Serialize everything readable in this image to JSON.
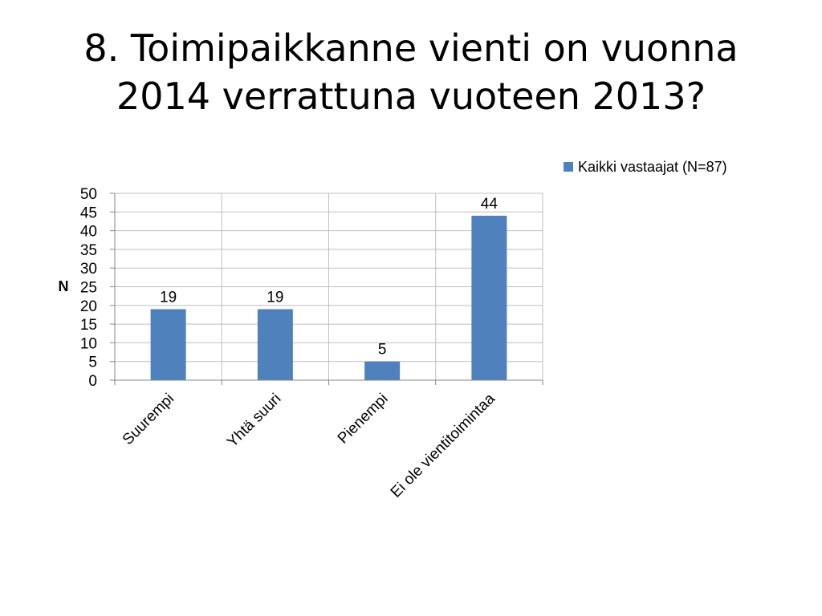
{
  "slide": {
    "title_line1": "8. Toimipaikkanne vienti on vuonna",
    "title_line2": "2014 verrattuna vuoteen 2013?"
  },
  "chart_data": {
    "type": "bar",
    "categories": [
      "Suurempi",
      "Yhtä suuri",
      "Pienempi",
      "Ei ole vientitoimintaa"
    ],
    "series": [
      {
        "name": "Kaikki vastaajat (N=87)",
        "values": [
          19,
          19,
          5,
          44
        ],
        "color": "#4F81BD"
      }
    ],
    "ylabel": "N",
    "xlabel": "",
    "ylim": [
      0,
      50
    ],
    "yticks": [
      0,
      5,
      10,
      15,
      20,
      25,
      30,
      35,
      40,
      45,
      50
    ],
    "data_labels": true,
    "grid": true,
    "grid_color": "#BFBFBF",
    "legend_position": "top-right"
  }
}
